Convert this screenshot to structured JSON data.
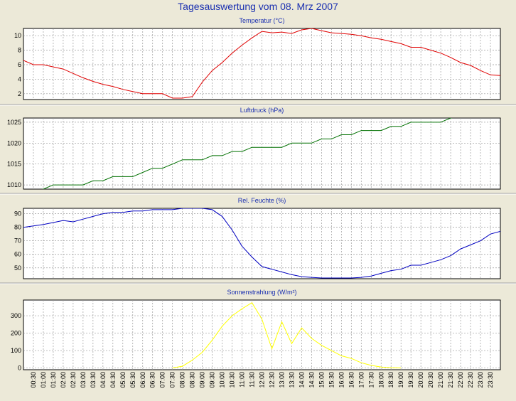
{
  "title": "Tagesauswertung vom 08. Mrz 2007",
  "colors": {
    "background": "#ece9d8",
    "plot": "#ffffff",
    "title": "#1a2fb0",
    "grid": "#999999"
  },
  "x_ticks": [
    "00:30",
    "01:00",
    "01:30",
    "02:00",
    "02:30",
    "03:00",
    "03:30",
    "04:00",
    "04:30",
    "05:00",
    "05:30",
    "06:00",
    "06:30",
    "07:00",
    "07:30",
    "08:00",
    "08:30",
    "09:00",
    "09:30",
    "10:00",
    "10:30",
    "11:00",
    "11:30",
    "12:00",
    "12:30",
    "13:00",
    "13:30",
    "14:00",
    "14:30",
    "15:00",
    "15:30",
    "16:00",
    "16:30",
    "17:00",
    "17:30",
    "18:00",
    "18:30",
    "19:00",
    "19:30",
    "20:00",
    "20:30",
    "21:00",
    "21:30",
    "22:00",
    "22:30",
    "23:00",
    "23:30"
  ],
  "chart_data": [
    {
      "type": "line",
      "title": "Temperatur (°C)",
      "color": "#e00000",
      "ylim": [
        1.2,
        11
      ],
      "yticks": [
        2,
        4,
        6,
        8,
        10
      ],
      "x": [
        0,
        0.5,
        1,
        1.5,
        2,
        2.5,
        3,
        3.5,
        4,
        4.5,
        5,
        5.5,
        6,
        6.5,
        7,
        7.5,
        8,
        8.5,
        9,
        9.5,
        10,
        10.5,
        11,
        11.5,
        12,
        12.5,
        13,
        13.5,
        14,
        14.5,
        15,
        15.5,
        16,
        16.5,
        17,
        17.5,
        18,
        18.5,
        19,
        19.5,
        20,
        20.5,
        21,
        21.5,
        22,
        22.5,
        23,
        23.5,
        24
      ],
      "values": [
        6.6,
        6.0,
        6.0,
        5.7,
        5.4,
        4.8,
        4.2,
        3.7,
        3.3,
        3.0,
        2.6,
        2.3,
        2.0,
        2.0,
        2.0,
        1.4,
        1.4,
        1.6,
        3.6,
        5.2,
        6.3,
        7.6,
        8.7,
        9.7,
        10.6,
        10.4,
        10.5,
        10.3,
        10.8,
        11.0,
        10.7,
        10.4,
        10.3,
        10.2,
        10.0,
        9.7,
        9.5,
        9.2,
        8.9,
        8.4,
        8.4,
        8.0,
        7.6,
        7.0,
        6.3,
        5.9,
        5.2,
        4.6,
        4.5
      ]
    },
    {
      "type": "line",
      "title": "Luftdruck (hPa)",
      "color": "#007000",
      "ylim": [
        1009,
        1026
      ],
      "yticks": [
        1010,
        1015,
        1020,
        1025
      ],
      "x": [
        0,
        0.5,
        1,
        1.5,
        2,
        2.5,
        3,
        3.5,
        4,
        4.5,
        5,
        5.5,
        6,
        6.5,
        7,
        7.5,
        8,
        8.5,
        9,
        9.5,
        10,
        10.5,
        11,
        11.5,
        12,
        12.5,
        13,
        13.5,
        14,
        14.5,
        15,
        15.5,
        16,
        16.5,
        17,
        17.5,
        18,
        18.5,
        19,
        19.5,
        20,
        20.5,
        21,
        21.5,
        22,
        22.5,
        23,
        23.5,
        24
      ],
      "values": [
        1008,
        1008.5,
        1009,
        1010,
        1010,
        1010,
        1010,
        1011,
        1011,
        1012,
        1012,
        1012,
        1013,
        1014,
        1014,
        1015,
        1016,
        1016,
        1016,
        1017,
        1017,
        1018,
        1018,
        1019,
        1019,
        1019,
        1019,
        1020,
        1020,
        1020,
        1021,
        1021,
        1022,
        1022,
        1023,
        1023,
        1023,
        1024,
        1024,
        1025,
        1025,
        1025,
        1025,
        1026,
        1026.5,
        1027,
        1027,
        1027,
        1027
      ]
    },
    {
      "type": "line",
      "title": "Rel. Feuchte (%)",
      "color": "#0000c0",
      "ylim": [
        42,
        94
      ],
      "yticks": [
        50,
        60,
        70,
        80,
        90
      ],
      "x": [
        0,
        0.5,
        1,
        1.5,
        2,
        2.5,
        3,
        3.5,
        4,
        4.5,
        5,
        5.5,
        6,
        6.5,
        7,
        7.5,
        8,
        8.5,
        9,
        9.5,
        10,
        10.5,
        11,
        11.5,
        12,
        12.5,
        13,
        13.5,
        14,
        14.5,
        15,
        15.5,
        16,
        16.5,
        17,
        17.5,
        18,
        18.5,
        19,
        19.5,
        20,
        20.5,
        21,
        21.5,
        22,
        22.5,
        23,
        23.5,
        24
      ],
      "values": [
        80,
        81,
        82,
        83.5,
        85,
        84,
        86,
        88,
        90,
        91,
        91,
        92,
        92,
        93,
        93,
        93,
        94,
        94,
        94,
        93,
        88,
        78,
        66,
        58,
        51,
        49,
        47,
        45,
        43.5,
        43,
        42.5,
        42.5,
        42.5,
        42.5,
        43,
        44,
        46,
        48,
        49,
        52,
        52,
        54,
        56,
        59,
        64,
        67,
        70,
        75,
        77
      ]
    },
    {
      "type": "line",
      "title": "Sonnenstrahlung (W/m²)",
      "color": "#ffff00",
      "ylim": [
        -10,
        390
      ],
      "yticks": [
        0,
        100,
        200,
        300
      ],
      "x": [
        7.5,
        8,
        8.5,
        9,
        9.5,
        10,
        10.5,
        11,
        11.5,
        12,
        12.5,
        13,
        13.5,
        14,
        14.5,
        15,
        15.5,
        16,
        16.5,
        17,
        17.5,
        18,
        18.5,
        19
      ],
      "values": [
        0,
        10,
        45,
        90,
        160,
        240,
        300,
        340,
        375,
        280,
        110,
        265,
        140,
        230,
        170,
        130,
        100,
        70,
        55,
        30,
        15,
        5,
        2,
        0
      ]
    }
  ]
}
